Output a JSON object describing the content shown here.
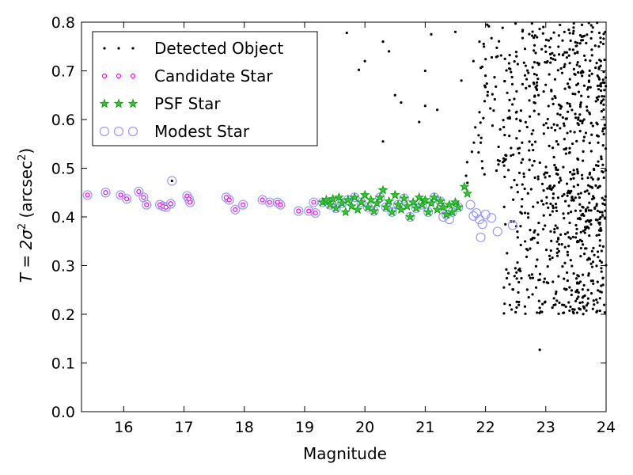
{
  "chart_data": {
    "type": "scatter",
    "title": "",
    "xlabel": "Magnitude",
    "ylabel": {
      "prefix": "T = 2σ",
      "sup1": "2",
      "unit": " (arcsec",
      "sup2": "2",
      "close": ")"
    },
    "xlim": [
      15.3,
      24
    ],
    "ylim": [
      0.0,
      0.8
    ],
    "xticks": [
      16,
      17,
      18,
      19,
      20,
      21,
      22,
      23,
      24
    ],
    "yticks": [
      0.0,
      0.1,
      0.2,
      0.3,
      0.4,
      0.5,
      0.6,
      0.7,
      0.8
    ],
    "xtick_labels": [
      "16",
      "17",
      "18",
      "19",
      "20",
      "21",
      "22",
      "23",
      "24"
    ],
    "ytick_labels": [
      "0.0",
      "0.1",
      "0.2",
      "0.3",
      "0.4",
      "0.5",
      "0.6",
      "0.7",
      "0.8"
    ],
    "grid": false,
    "legend_position": "top-left",
    "series": [
      {
        "name": "Detected Object",
        "marker": "dot",
        "color": "#000000",
        "points": [
          [
            16.8,
            0.474
          ],
          [
            19.1,
            0.555
          ],
          [
            19.7,
            0.778
          ],
          [
            19.9,
            0.702
          ],
          [
            20.0,
            0.72
          ],
          [
            20.3,
            0.76
          ],
          [
            20.4,
            0.74
          ],
          [
            20.5,
            0.65
          ],
          [
            20.6,
            0.635
          ],
          [
            20.3,
            0.555
          ],
          [
            21.0,
            0.7
          ],
          [
            21.0,
            0.628
          ],
          [
            21.1,
            0.775
          ],
          [
            21.2,
            0.62
          ],
          [
            20.9,
            0.595
          ],
          [
            21.5,
            0.78
          ],
          [
            21.9,
            0.76
          ],
          [
            21.8,
            0.72
          ],
          [
            21.7,
            0.47
          ],
          [
            22.0,
            0.69
          ],
          [
            22.2,
            0.73
          ],
          [
            22.4,
            0.64
          ],
          [
            22.3,
            0.52
          ],
          [
            21.9,
            0.615
          ],
          [
            21.6,
            0.68
          ],
          [
            22.9,
            0.127
          ],
          [
            23.8,
            0.22
          ],
          [
            23.9,
            0.31
          ],
          [
            23.6,
            0.35
          ],
          [
            23.7,
            0.25
          ]
        ]
      },
      {
        "name": "Candidate Star",
        "marker": "circle-small",
        "color": "#ff00ff",
        "points": [
          [
            15.4,
            0.445
          ],
          [
            15.7,
            0.45
          ],
          [
            15.95,
            0.445
          ],
          [
            16.05,
            0.437
          ],
          [
            16.25,
            0.452
          ],
          [
            16.33,
            0.44
          ],
          [
            16.38,
            0.425
          ],
          [
            16.6,
            0.425
          ],
          [
            16.65,
            0.422
          ],
          [
            16.7,
            0.42
          ],
          [
            16.78,
            0.427
          ],
          [
            17.05,
            0.443
          ],
          [
            17.08,
            0.437
          ],
          [
            17.1,
            0.43
          ],
          [
            17.7,
            0.44
          ],
          [
            17.75,
            0.435
          ],
          [
            17.85,
            0.415
          ],
          [
            17.98,
            0.425
          ],
          [
            18.3,
            0.435
          ],
          [
            18.42,
            0.43
          ],
          [
            18.55,
            0.43
          ],
          [
            18.6,
            0.425
          ],
          [
            18.9,
            0.412
          ],
          [
            19.07,
            0.412
          ],
          [
            19.15,
            0.43
          ],
          [
            19.18,
            0.408
          ]
        ]
      },
      {
        "name": "PSF Star",
        "marker": "star",
        "color": "#00a000",
        "points": [
          [
            19.3,
            0.43
          ],
          [
            19.36,
            0.435
          ],
          [
            19.42,
            0.425
          ],
          [
            19.47,
            0.437
          ],
          [
            19.52,
            0.418
          ],
          [
            19.57,
            0.44
          ],
          [
            19.62,
            0.428
          ],
          [
            19.68,
            0.41
          ],
          [
            19.72,
            0.435
          ],
          [
            19.78,
            0.422
          ],
          [
            19.83,
            0.44
          ],
          [
            19.88,
            0.415
          ],
          [
            19.94,
            0.43
          ],
          [
            20.0,
            0.445
          ],
          [
            20.05,
            0.42
          ],
          [
            20.1,
            0.435
          ],
          [
            20.15,
            0.412
          ],
          [
            20.2,
            0.428
          ],
          [
            20.25,
            0.44
          ],
          [
            20.3,
            0.455
          ],
          [
            20.35,
            0.42
          ],
          [
            20.4,
            0.432
          ],
          [
            20.45,
            0.41
          ],
          [
            20.5,
            0.445
          ],
          [
            20.55,
            0.425
          ],
          [
            20.6,
            0.415
          ],
          [
            20.65,
            0.438
          ],
          [
            20.7,
            0.422
          ],
          [
            20.75,
            0.4
          ],
          [
            20.8,
            0.43
          ],
          [
            20.85,
            0.418
          ],
          [
            20.9,
            0.44
          ],
          [
            20.95,
            0.425
          ],
          [
            21.0,
            0.435
          ],
          [
            21.05,
            0.41
          ],
          [
            21.1,
            0.428
          ],
          [
            21.15,
            0.44
          ],
          [
            21.2,
            0.415
          ],
          [
            21.25,
            0.432
          ],
          [
            21.3,
            0.42
          ],
          [
            21.35,
            0.405
          ],
          [
            21.4,
            0.425
          ],
          [
            21.45,
            0.41
          ],
          [
            21.5,
            0.43
          ],
          [
            21.55,
            0.42
          ],
          [
            21.65,
            0.462
          ],
          [
            21.7,
            0.448
          ]
        ]
      },
      {
        "name": "Modest Star",
        "marker": "circle-open",
        "color": "#9999ff",
        "points": [
          [
            15.4,
            0.445
          ],
          [
            15.7,
            0.45
          ],
          [
            15.95,
            0.445
          ],
          [
            16.05,
            0.437
          ],
          [
            16.25,
            0.452
          ],
          [
            16.33,
            0.44
          ],
          [
            16.38,
            0.425
          ],
          [
            16.6,
            0.425
          ],
          [
            16.65,
            0.422
          ],
          [
            16.7,
            0.42
          ],
          [
            16.78,
            0.427
          ],
          [
            16.8,
            0.474
          ],
          [
            17.05,
            0.443
          ],
          [
            17.08,
            0.437
          ],
          [
            17.1,
            0.43
          ],
          [
            17.7,
            0.44
          ],
          [
            17.75,
            0.435
          ],
          [
            17.85,
            0.415
          ],
          [
            17.98,
            0.425
          ],
          [
            18.3,
            0.435
          ],
          [
            18.42,
            0.43
          ],
          [
            18.55,
            0.43
          ],
          [
            18.6,
            0.425
          ],
          [
            18.9,
            0.412
          ],
          [
            19.07,
            0.412
          ],
          [
            19.15,
            0.43
          ],
          [
            19.18,
            0.408
          ],
          [
            19.3,
            0.43
          ],
          [
            19.42,
            0.425
          ],
          [
            19.52,
            0.418
          ],
          [
            19.62,
            0.428
          ],
          [
            19.72,
            0.435
          ],
          [
            19.83,
            0.44
          ],
          [
            19.94,
            0.43
          ],
          [
            20.05,
            0.42
          ],
          [
            20.15,
            0.412
          ],
          [
            20.25,
            0.44
          ],
          [
            20.35,
            0.42
          ],
          [
            20.45,
            0.41
          ],
          [
            20.55,
            0.425
          ],
          [
            20.65,
            0.438
          ],
          [
            20.75,
            0.4
          ],
          [
            20.85,
            0.418
          ],
          [
            20.95,
            0.425
          ],
          [
            21.05,
            0.41
          ],
          [
            21.15,
            0.44
          ],
          [
            21.25,
            0.432
          ],
          [
            21.35,
            0.405
          ],
          [
            21.45,
            0.41
          ],
          [
            21.55,
            0.42
          ],
          [
            21.3,
            0.4
          ],
          [
            21.4,
            0.395
          ],
          [
            21.75,
            0.425
          ],
          [
            21.8,
            0.402
          ],
          [
            21.85,
            0.408
          ],
          [
            21.9,
            0.395
          ],
          [
            21.92,
            0.358
          ],
          [
            21.95,
            0.385
          ],
          [
            22.0,
            0.405
          ],
          [
            22.1,
            0.398
          ],
          [
            22.2,
            0.37
          ],
          [
            22.45,
            0.383
          ]
        ]
      }
    ]
  }
}
